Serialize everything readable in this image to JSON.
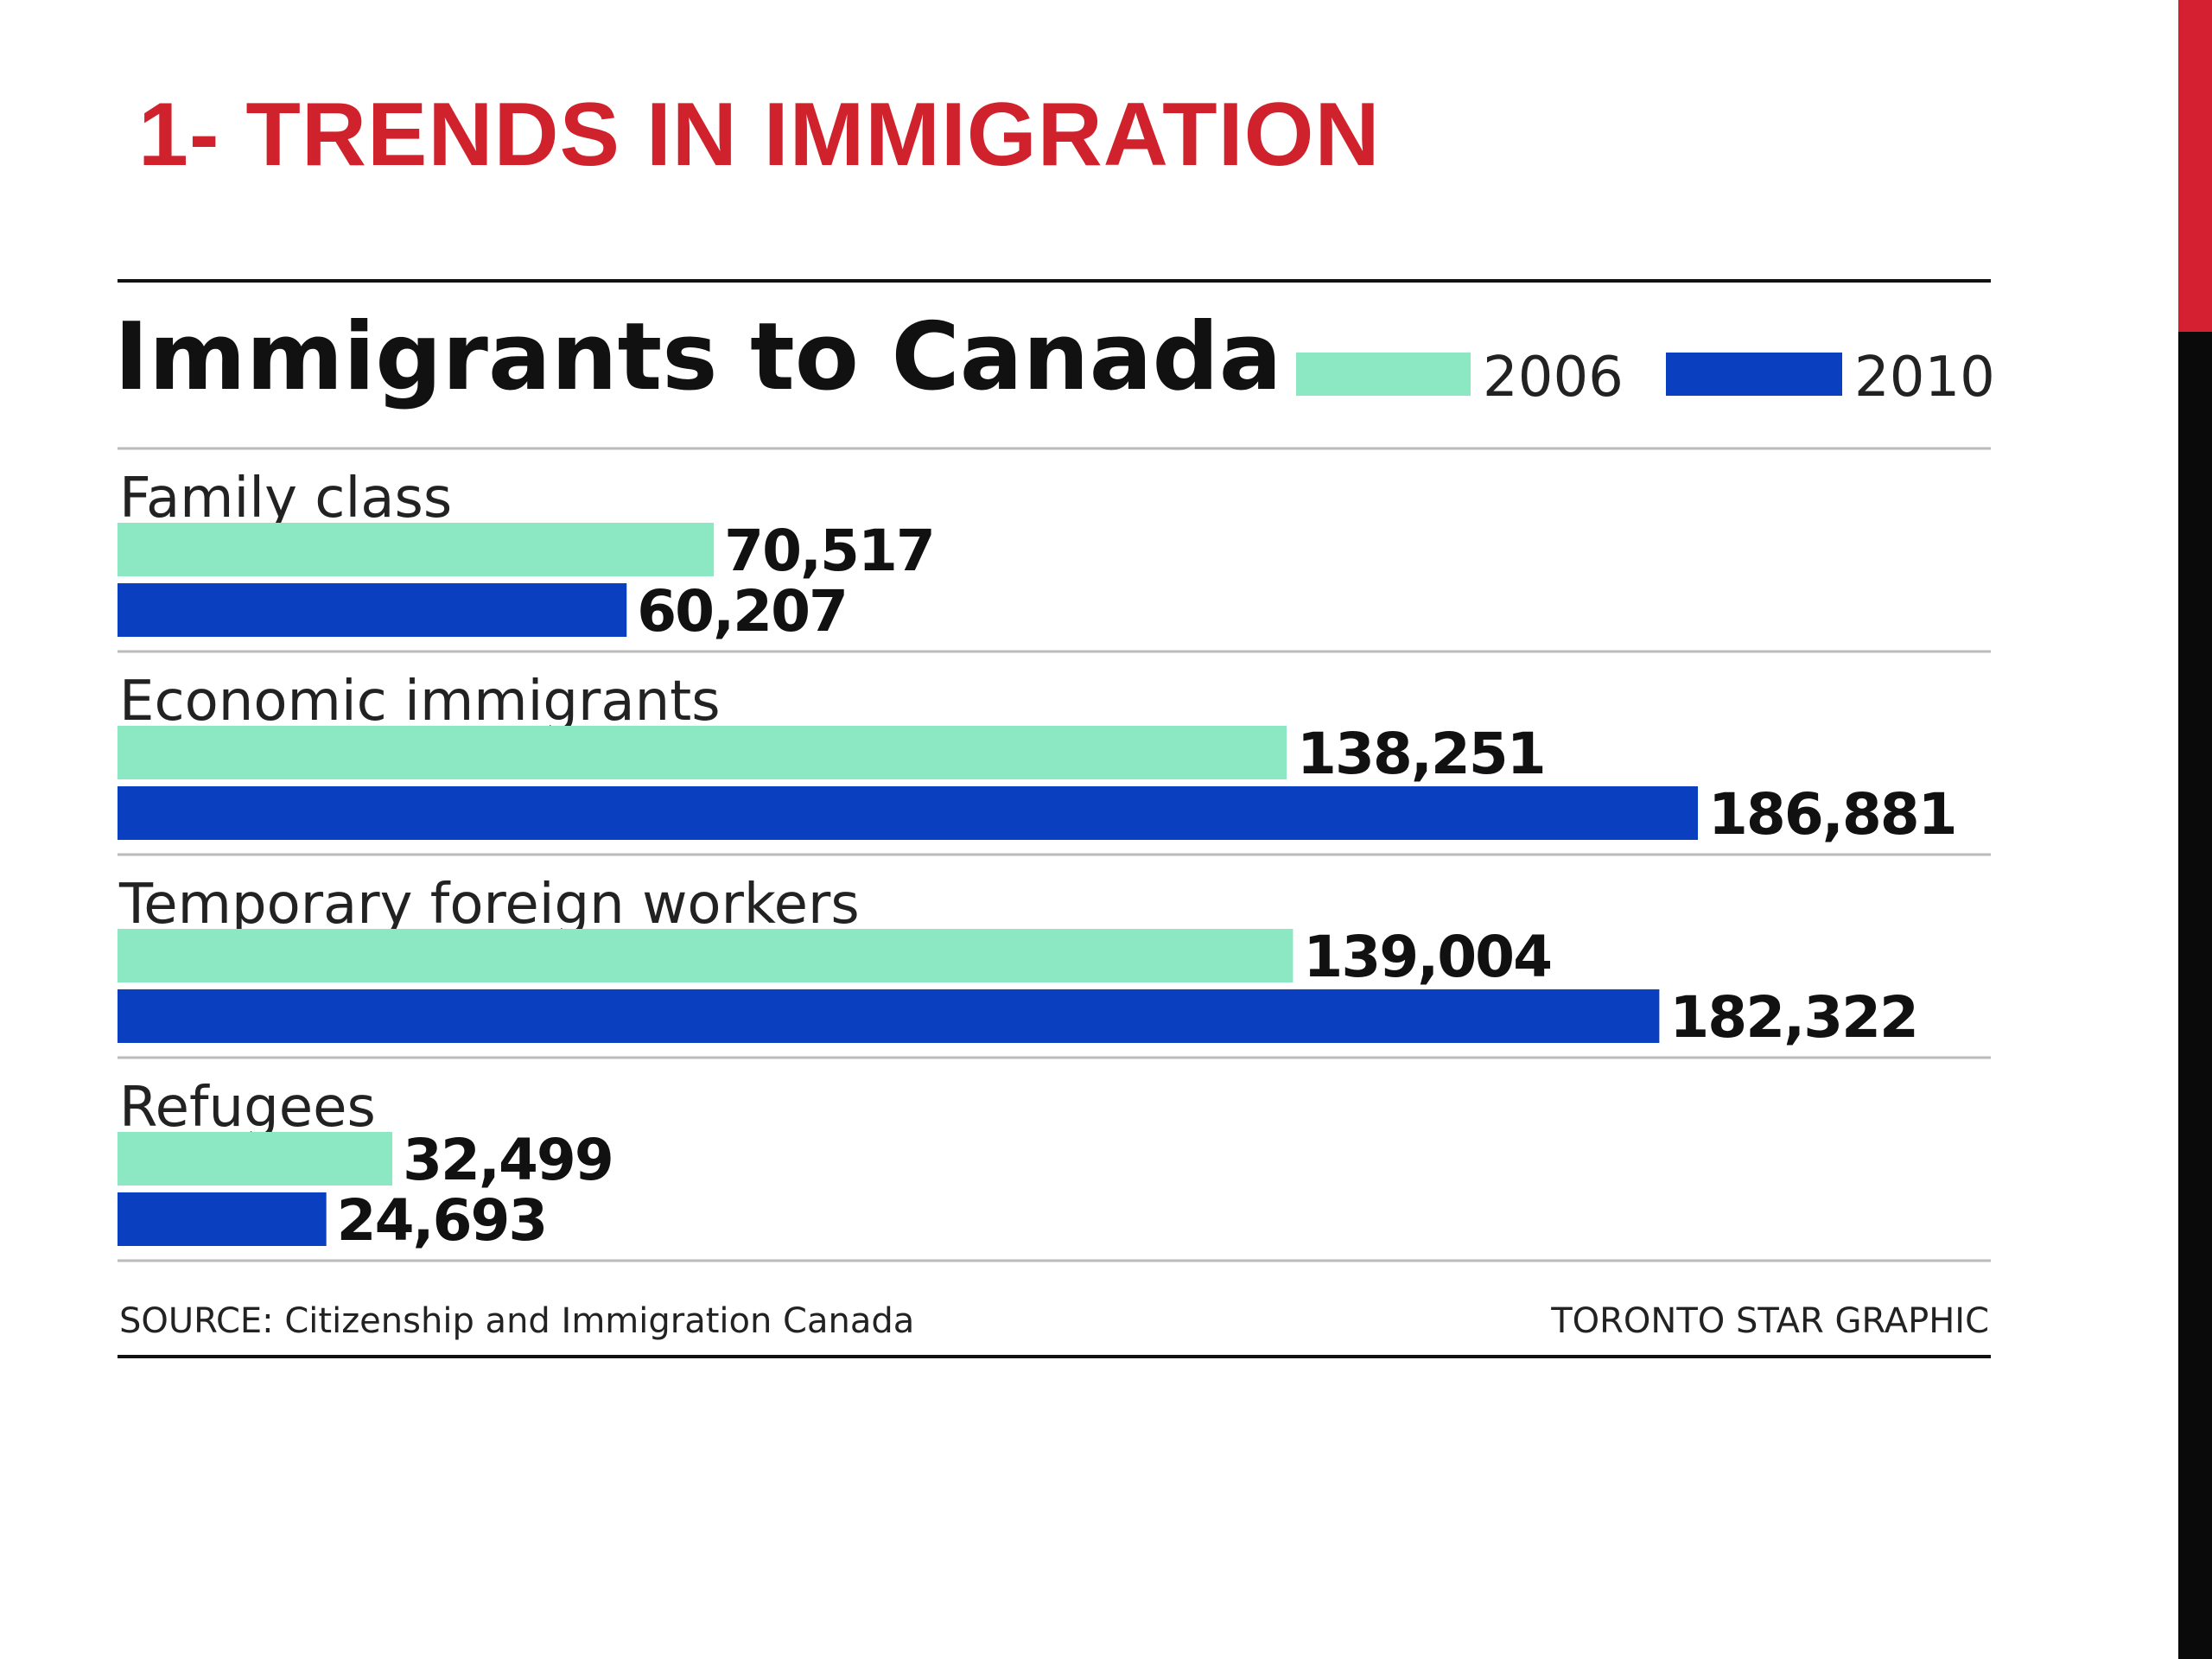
{
  "slide": {
    "title": "1- TRENDS IN IMMIGRATION"
  },
  "colors": {
    "title_red": "#d0222c",
    "series_2006": "#8ce8c2",
    "series_2010": "#0a3fbf"
  },
  "chart_data": {
    "type": "bar",
    "orientation": "horizontal",
    "title": "Immigrants to Canada",
    "categories": [
      "Family class",
      "Economic immigrants",
      "Temporary foreign workers",
      "Refugees"
    ],
    "series": [
      {
        "name": "2006",
        "values": [
          70517,
          138251,
          139004,
          32499
        ],
        "labels": [
          "70,517",
          "138,251",
          "139,004",
          "32,499"
        ],
        "color": "#8ce8c2"
      },
      {
        "name": "2010",
        "values": [
          60207,
          186881,
          182322,
          24693
        ],
        "labels": [
          "60,207",
          "186,881",
          "182,322",
          "24,693"
        ],
        "color": "#0a3fbf"
      }
    ],
    "legend_placement": "top-right",
    "grid": false,
    "source": "SOURCE: Citizenship and Immigration Canada",
    "credit": "TORONTO STAR GRAPHIC"
  }
}
